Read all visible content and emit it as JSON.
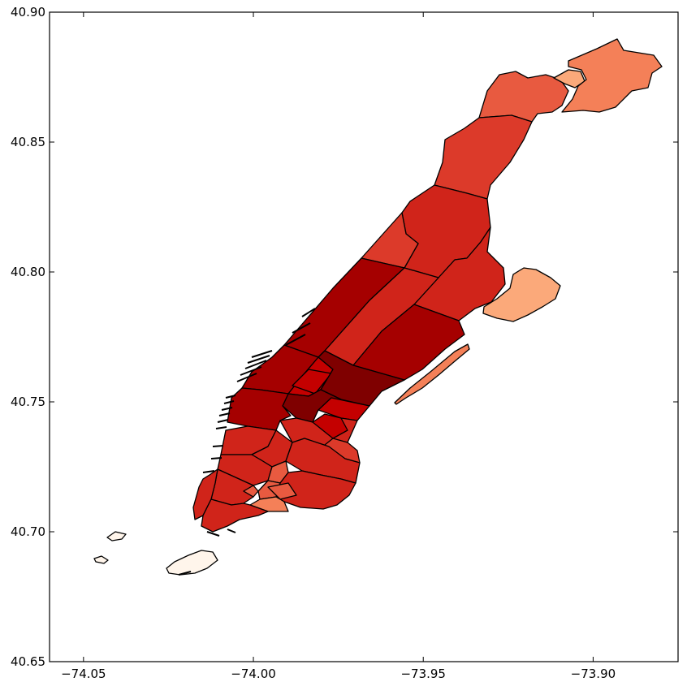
{
  "chart_data": {
    "type": "choropleth",
    "xlabel": "",
    "ylabel": "",
    "xlim": [
      -74.06,
      -73.875
    ],
    "ylim": [
      40.65,
      40.9
    ],
    "x_ticks": [
      -74.05,
      -74.0,
      -73.95,
      -73.9
    ],
    "x_tick_labels": [
      "−74.05",
      "−74.00",
      "−73.95",
      "−73.90"
    ],
    "y_ticks": [
      40.65,
      40.7,
      40.75,
      40.8,
      40.85,
      40.9
    ],
    "y_tick_labels": [
      "40.65",
      "40.70",
      "40.75",
      "40.80",
      "40.85",
      "40.90"
    ],
    "colormap": "Reds",
    "grid": false,
    "legend": "none"
  },
  "colors": {
    "darkest": "#7f0000",
    "very_dark": "#a50000",
    "dark": "#c40000",
    "strong": "#d0241a",
    "medium": "#dc3a2a",
    "medium_light": "#e85a40",
    "light_orange": "#f48058",
    "pale_orange": "#fba97a",
    "cream": "#fff5eb"
  }
}
